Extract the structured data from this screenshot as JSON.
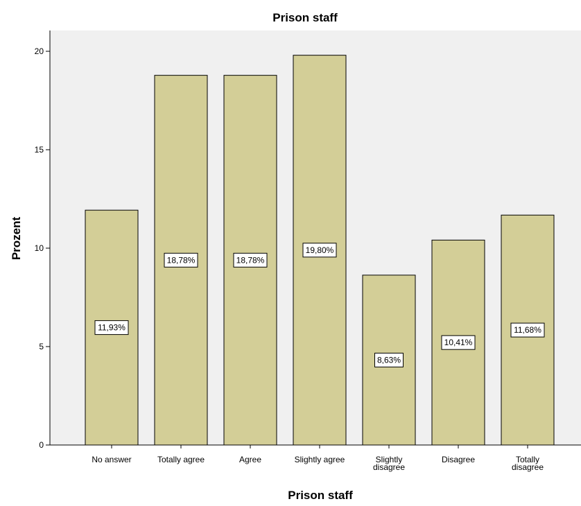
{
  "chart_data": {
    "type": "bar",
    "title": "Prison staff",
    "xlabel": "Prison staff",
    "ylabel": "Prozent",
    "categories": [
      "No answer",
      "Totally agree",
      "Agree",
      "Slightly agree",
      "Slightly disagree",
      "Disagree",
      "Totally disagree"
    ],
    "category_lines": [
      [
        "No answer"
      ],
      [
        "Totally agree"
      ],
      [
        "Agree"
      ],
      [
        "Slightly agree"
      ],
      [
        "Slightly",
        "disagree"
      ],
      [
        "Disagree"
      ],
      [
        "Totally",
        "disagree"
      ]
    ],
    "values": [
      11.93,
      18.78,
      18.78,
      19.8,
      8.63,
      10.41,
      11.68
    ],
    "data_labels": [
      "11,93%",
      "18,78%",
      "18,78%",
      "19,80%",
      "8,63%",
      "10,41%",
      "11,68%"
    ],
    "ylim": [
      0,
      20
    ],
    "yticks": [
      0,
      5,
      10,
      15,
      20
    ],
    "grid": false,
    "colors": {
      "plot_background": "#f0f0f0",
      "bar_fill": "#d3ce97",
      "bar_stroke": "#000000"
    }
  }
}
